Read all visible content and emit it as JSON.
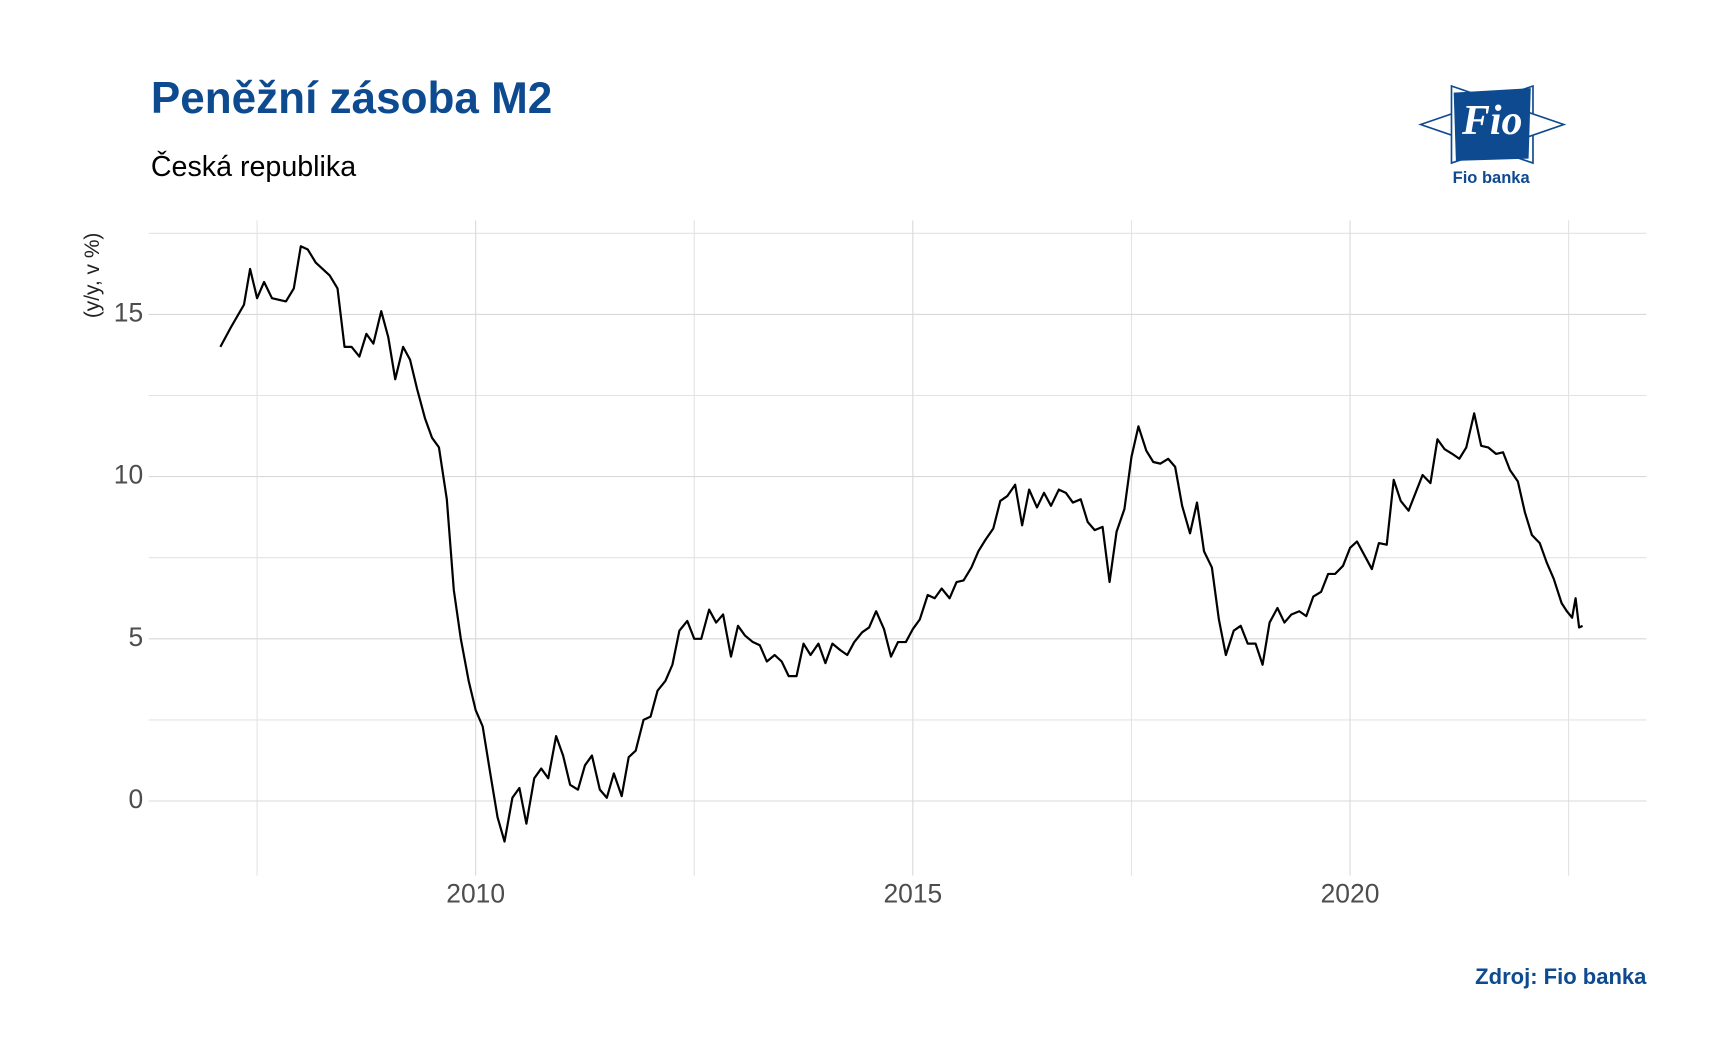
{
  "chart_data": {
    "type": "line",
    "title": "Peněžní zásoba M2",
    "subtitle": "Česká republika",
    "y_axis_label": "(y/y, v %)",
    "source": "Zdroj: Fio banka",
    "logo": {
      "mark": "Fio",
      "caption": "Fio banka"
    },
    "xlim": [
      2006.26,
      2023.39
    ],
    "xticks": [
      2010,
      2015,
      2020
    ],
    "x_minor_gridlines": [
      2007.5,
      2012.5,
      2017.5,
      2022.5
    ],
    "ylim": [
      -2.3,
      17.9
    ],
    "yticks": [
      0,
      5,
      10,
      15
    ],
    "y_minor_gridlines": [
      2.5,
      7.5,
      12.5,
      17.5
    ],
    "grid": true,
    "x": [
      2007.08,
      2007.2,
      2007.35,
      2007.42,
      2007.5,
      2007.58,
      2007.67,
      2007.83,
      2007.92,
      2008.0,
      2008.08,
      2008.17,
      2008.33,
      2008.42,
      2008.5,
      2008.58,
      2008.67,
      2008.75,
      2008.83,
      2008.92,
      2009.0,
      2009.08,
      2009.17,
      2009.25,
      2009.33,
      2009.42,
      2009.5,
      2009.58,
      2009.67,
      2009.75,
      2009.83,
      2009.92,
      2010.0,
      2010.08,
      2010.17,
      2010.25,
      2010.33,
      2010.42,
      2010.5,
      2010.58,
      2010.67,
      2010.75,
      2010.83,
      2010.92,
      2011.0,
      2011.08,
      2011.17,
      2011.25,
      2011.33,
      2011.42,
      2011.5,
      2011.58,
      2011.67,
      2011.75,
      2011.83,
      2011.92,
      2012.0,
      2012.08,
      2012.17,
      2012.25,
      2012.33,
      2012.42,
      2012.5,
      2012.58,
      2012.67,
      2012.75,
      2012.83,
      2012.92,
      2013.0,
      2013.08,
      2013.17,
      2013.25,
      2013.33,
      2013.42,
      2013.5,
      2013.58,
      2013.67,
      2013.75,
      2013.83,
      2013.92,
      2014.0,
      2014.08,
      2014.17,
      2014.25,
      2014.33,
      2014.42,
      2014.5,
      2014.58,
      2014.67,
      2014.75,
      2014.83,
      2014.92,
      2015.0,
      2015.08,
      2015.17,
      2015.25,
      2015.33,
      2015.42,
      2015.5,
      2015.58,
      2015.67,
      2015.75,
      2015.83,
      2015.92,
      2016.0,
      2016.08,
      2016.17,
      2016.25,
      2016.33,
      2016.42,
      2016.5,
      2016.58,
      2016.67,
      2016.75,
      2016.83,
      2016.92,
      2017.0,
      2017.08,
      2017.17,
      2017.25,
      2017.33,
      2017.42,
      2017.5,
      2017.58,
      2017.67,
      2017.75,
      2017.83,
      2017.92,
      2018.0,
      2018.08,
      2018.17,
      2018.25,
      2018.33,
      2018.42,
      2018.5,
      2018.58,
      2018.67,
      2018.75,
      2018.83,
      2018.92,
      2019.0,
      2019.08,
      2019.17,
      2019.25,
      2019.33,
      2019.42,
      2019.5,
      2019.58,
      2019.67,
      2019.75,
      2019.83,
      2019.92,
      2020.0,
      2020.08,
      2020.17,
      2020.25,
      2020.33,
      2020.42,
      2020.5,
      2020.58,
      2020.67,
      2020.75,
      2020.83,
      2020.92,
      2021.0,
      2021.08,
      2021.17,
      2021.25,
      2021.33,
      2021.42,
      2021.5,
      2021.58,
      2021.67,
      2021.75,
      2021.83,
      2021.92,
      2022.0,
      2022.08,
      2022.17,
      2022.25,
      2022.33,
      2022.42,
      2022.48,
      2022.54,
      2022.58,
      2022.62,
      2022.66
    ],
    "series": [
      {
        "name": "M2",
        "color": "#000000",
        "values": [
          14.0,
          14.6,
          15.3,
          16.4,
          15.5,
          16.0,
          15.5,
          15.4,
          15.8,
          17.1,
          17.0,
          16.6,
          16.2,
          15.8,
          14.0,
          14.0,
          13.7,
          14.4,
          14.1,
          15.1,
          14.3,
          13.0,
          14.0,
          13.6,
          12.7,
          11.8,
          11.2,
          10.9,
          9.3,
          6.5,
          5.0,
          3.7,
          2.8,
          2.3,
          0.8,
          -0.5,
          -1.25,
          0.1,
          0.4,
          -0.7,
          0.7,
          1.0,
          0.7,
          2.0,
          1.4,
          0.5,
          0.35,
          1.1,
          1.4,
          0.35,
          0.1,
          0.85,
          0.15,
          1.35,
          1.55,
          2.5,
          2.6,
          3.4,
          3.7,
          4.2,
          5.25,
          5.55,
          5.0,
          5.0,
          5.9,
          5.5,
          5.75,
          4.45,
          5.4,
          5.1,
          4.9,
          4.8,
          4.3,
          4.5,
          4.3,
          3.85,
          3.85,
          4.85,
          4.5,
          4.85,
          4.25,
          4.85,
          4.65,
          4.5,
          4.9,
          5.2,
          5.35,
          5.85,
          5.3,
          4.45,
          4.9,
          4.9,
          5.3,
          5.6,
          6.35,
          6.25,
          6.55,
          6.25,
          6.75,
          6.8,
          7.2,
          7.7,
          8.05,
          8.4,
          9.25,
          9.4,
          9.75,
          8.5,
          9.6,
          9.05,
          9.5,
          9.1,
          9.6,
          9.5,
          9.2,
          9.3,
          8.6,
          8.35,
          8.45,
          6.75,
          8.3,
          9.0,
          10.6,
          11.55,
          10.8,
          10.45,
          10.4,
          10.55,
          10.3,
          9.1,
          8.25,
          9.2,
          7.7,
          7.2,
          5.6,
          4.5,
          5.25,
          5.4,
          4.85,
          4.85,
          4.2,
          5.5,
          5.95,
          5.5,
          5.75,
          5.85,
          5.7,
          6.3,
          6.45,
          7.0,
          7.0,
          7.25,
          7.8,
          8.0,
          7.55,
          7.15,
          7.95,
          7.9,
          9.9,
          9.25,
          8.95,
          9.5,
          10.05,
          9.8,
          11.15,
          10.85,
          10.7,
          10.55,
          10.9,
          11.95,
          10.95,
          10.9,
          10.7,
          10.75,
          10.2,
          9.85,
          8.9,
          8.2,
          7.95,
          7.35,
          6.85,
          6.1,
          5.85,
          5.65,
          6.25,
          5.35,
          5.4
        ]
      }
    ]
  }
}
